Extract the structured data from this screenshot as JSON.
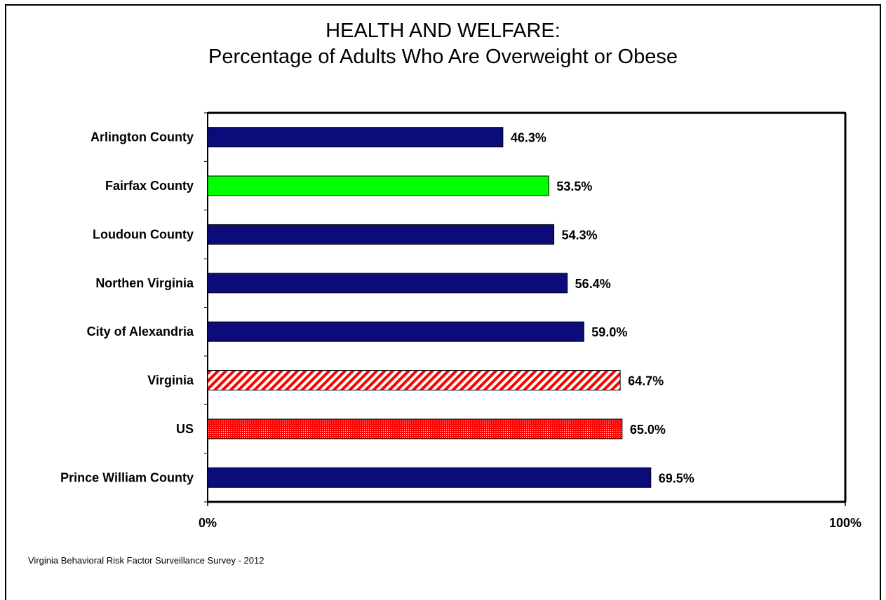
{
  "chart_data": {
    "type": "bar",
    "orientation": "horizontal",
    "title_line1": "HEALTH AND WELFARE:",
    "title_line2": "Percentage of Adults Who Are Overweight or Obese",
    "categories": [
      "Arlington County",
      "Fairfax County",
      "Loudoun County",
      "Northen Virginia",
      "City of Alexandria",
      "Virginia",
      "US",
      "Prince William County"
    ],
    "values": [
      46.3,
      53.5,
      54.3,
      56.4,
      59.0,
      64.7,
      65.0,
      69.5
    ],
    "value_labels": [
      "46.3%",
      "53.5%",
      "54.3%",
      "56.4%",
      "59.0%",
      "64.7%",
      "65.0%",
      "69.5%"
    ],
    "bar_styles": [
      "solid-navy",
      "solid-green",
      "solid-navy",
      "solid-navy",
      "solid-navy",
      "diagonal-red",
      "dotted-red",
      "solid-navy"
    ],
    "colors": {
      "navy": "#0b0b7a",
      "green": "#00ff00",
      "red": "#ff0000"
    },
    "xlim": [
      0,
      100
    ],
    "x_ticks": [
      "0%",
      "100%"
    ],
    "grid": false,
    "legend": "none"
  },
  "source_note": "Virginia Behavioral Risk Factor Surveillance Survey - 2012"
}
